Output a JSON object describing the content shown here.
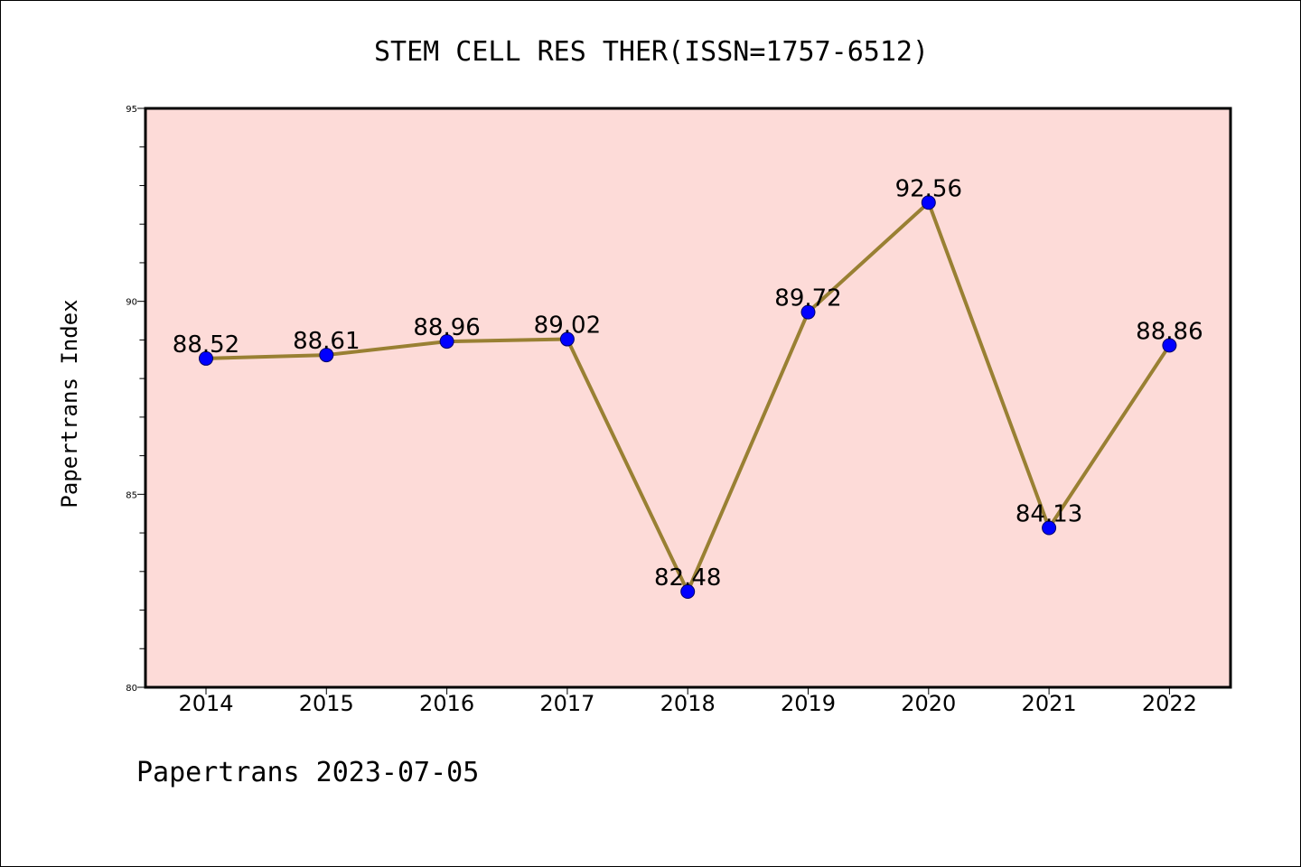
{
  "chart_data": {
    "type": "line",
    "title": "STEM CELL RES THER(ISSN=1757-6512)",
    "xlabel": "",
    "ylabel": "Papertrans Index",
    "categories": [
      "2014",
      "2015",
      "2016",
      "2017",
      "2018",
      "2019",
      "2020",
      "2021",
      "2022"
    ],
    "series": [
      {
        "values": [
          88.52,
          88.61,
          88.96,
          89.02,
          82.48,
          89.72,
          92.56,
          84.13,
          88.86
        ],
        "labels": [
          "88.52",
          "88.61",
          "88.96",
          "89.02",
          "82.48",
          "89.72",
          "92.56",
          "84.13",
          "88.86"
        ]
      }
    ],
    "ylim": [
      80,
      95
    ],
    "yticks": [
      "80",
      "85",
      "90",
      "95"
    ],
    "grid": false,
    "legend": "none",
    "colors": {
      "plot_background": "#fddbd8",
      "line": "#998033",
      "marker": "#0000ff",
      "axis": "#000000"
    }
  },
  "footer": "Papertrans 2023-07-05"
}
